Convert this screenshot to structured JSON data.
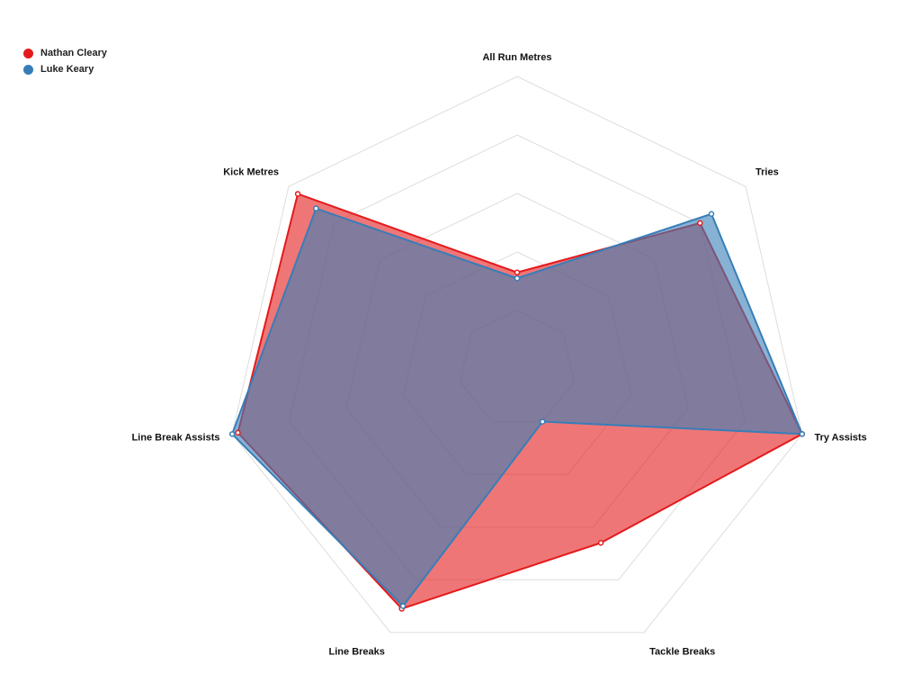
{
  "chart_data": {
    "type": "radar",
    "axes": [
      "All Run Metres",
      "Tries",
      "Try Assists",
      "Tackle Breaks",
      "Line Breaks",
      "Line Break Assists",
      "Kick Metres"
    ],
    "scale_max": 100,
    "grid_levels": 5,
    "grid": true,
    "legend_position": "top-left",
    "series": [
      {
        "name": "Nathan Cleary",
        "color": "#e41a1c",
        "values": [
          33,
          80,
          100,
          66,
          91,
          98,
          96
        ]
      },
      {
        "name": "Luke Keary",
        "color": "#377eb8",
        "values": [
          31,
          85,
          100,
          20,
          90,
          100,
          88
        ]
      }
    ]
  }
}
